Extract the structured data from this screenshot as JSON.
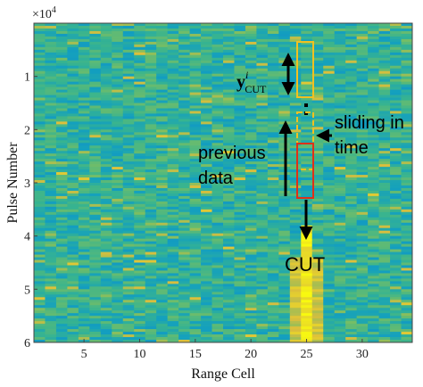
{
  "chart_data": {
    "type": "heatmap",
    "xlabel": "Range Cell",
    "ylabel": "Pulse Number",
    "y_exponent_label": "×10",
    "y_exponent_power": "4",
    "xlim": [
      0.5,
      34.5
    ],
    "ylim": [
      0,
      60000
    ],
    "xticks": [
      5,
      10,
      15,
      20,
      25,
      30
    ],
    "yticks": [
      1,
      2,
      3,
      4,
      5,
      6
    ],
    "target_range_cell": 25,
    "target_visible_from_pulse": 38000,
    "colormap": "parula",
    "colors": {
      "background": "#38b48f",
      "target": "#f2d53a",
      "window_box": "#f2c020",
      "cut_box": "#e03018",
      "arrows": "#000000"
    },
    "annotations": {
      "y_cut_symbol": "y",
      "y_cut_superscript": "i",
      "y_cut_subscript": "CUT",
      "sliding_line1": "sliding in",
      "sliding_line2": "time",
      "previous_line1": "previous",
      "previous_line2": "data",
      "cut_label": "CUT"
    }
  }
}
